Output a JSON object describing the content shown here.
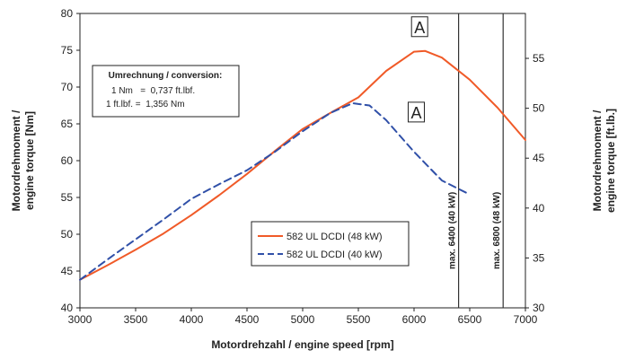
{
  "chart_data": {
    "type": "line",
    "xlabel": "Motordrehzahl / engine speed [rpm]",
    "ylabel": [
      "Motordrehmoment /",
      "engine torque [Nm]"
    ],
    "y2label": [
      "Motordrehmoment /",
      "engine torque [ft.lb.]"
    ],
    "xlim": [
      3000,
      7000
    ],
    "ylim": [
      40,
      80
    ],
    "y2lim": [
      30,
      59.5
    ],
    "x_ticks": [
      "3000",
      "3500",
      "4000",
      "4500",
      "5000",
      "5500",
      "6000",
      "6500",
      "7000"
    ],
    "y_ticks": [
      "40",
      "45",
      "50",
      "55",
      "60",
      "65",
      "70",
      "75",
      "80"
    ],
    "y2_ticks": [
      "30",
      "35",
      "40",
      "45",
      "50",
      "55"
    ],
    "grid": false,
    "legend_position": "center-right",
    "series": [
      {
        "name": "582 UL DCDI (48 kW)",
        "color": "#f05a28",
        "style": "solid",
        "x": [
          3000,
          3250,
          3500,
          3750,
          4000,
          4250,
          4500,
          4750,
          5000,
          5250,
          5500,
          5750,
          6000,
          6100,
          6250,
          6500,
          6750,
          7000
        ],
        "y": [
          43.8,
          45.8,
          47.9,
          50.1,
          52.6,
          55.3,
          58.2,
          61.3,
          64.3,
          66.5,
          68.6,
          72.2,
          74.8,
          74.9,
          74.0,
          71.0,
          67.2,
          62.8
        ]
      },
      {
        "name": "582 UL DCDI (40 kW)",
        "color": "#3050a8",
        "style": "dashed",
        "x": [
          3000,
          3250,
          3500,
          3750,
          4000,
          4250,
          4500,
          4750,
          5000,
          5250,
          5450,
          5600,
          5750,
          6000,
          6250,
          6500
        ],
        "y": [
          43.8,
          46.6,
          49.3,
          52.0,
          54.8,
          56.8,
          58.7,
          61.2,
          64.0,
          66.5,
          67.8,
          67.5,
          65.5,
          61.2,
          57.3,
          55.4
        ]
      }
    ],
    "vertical_lines": [
      {
        "x": 6400,
        "label": "max. 6400 (40 kW)"
      },
      {
        "x": 6800,
        "label": "max. 6800 (48 kW)"
      }
    ],
    "markers": [
      {
        "label": "A",
        "x": 6050,
        "y": 78.2
      },
      {
        "label": "A",
        "x": 6020,
        "y": 66.6
      }
    ],
    "conversion_box": {
      "title": "Umrechnung / conversion:",
      "lines": [
        "1 Nm   =  0,737 ft.lbf.",
        "1 ft.lbf. =  1,356 Nm"
      ]
    }
  }
}
